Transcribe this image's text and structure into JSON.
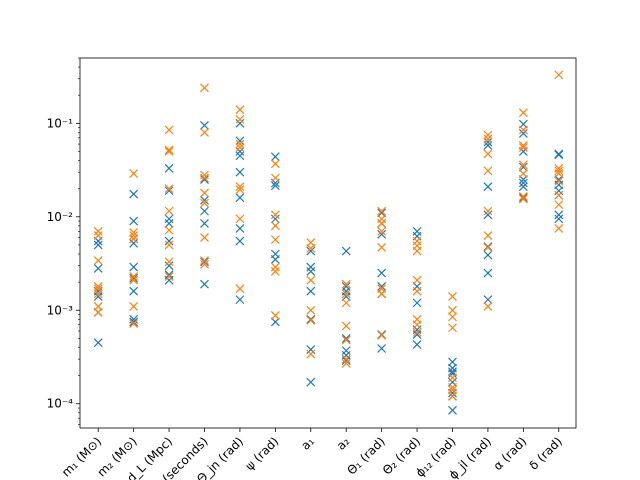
{
  "chart_data": {
    "type": "scatter",
    "title": "",
    "xlabel": "",
    "ylabel": "",
    "yscale": "log",
    "ylim": [
      5.5e-05,
      0.5
    ],
    "ytick_labels": [
      "10⁻⁴",
      "10⁻³",
      "10⁻²",
      "10⁻¹"
    ],
    "ytick_values": [
      0.0001,
      0.001,
      0.01,
      0.1
    ],
    "grid": false,
    "legend": "none",
    "categories": [
      "m₁ (M⊙)",
      "m₂ (M⊙)",
      "d_L (Mpc)",
      "t_c (seconds)",
      "Θ_jn (rad)",
      "ψ (rad)",
      "a₁",
      "a₂",
      "Θ₁ (rad)",
      "Θ₂ (rad)",
      "ϕ₁₂ (rad)",
      "ϕ_jl (rad)",
      "α (rad)",
      "δ (rad)"
    ],
    "marker": "x",
    "colors": [
      "#1f77b4",
      "#ff7f0e"
    ],
    "series": [
      {
        "color": "#1f77b4",
        "values": [
          [
            0.00045,
            0.00095,
            0.0014,
            0.0016,
            0.0028,
            0.005,
            0.0055
          ],
          [
            0.00075,
            0.0008,
            0.0016,
            0.0022,
            0.0029,
            0.0052,
            0.0058,
            0.009,
            0.0175
          ],
          [
            0.0021,
            0.0024,
            0.003,
            0.0055,
            0.0085,
            0.0095,
            0.019,
            0.033
          ],
          [
            0.0019,
            0.0033,
            0.0085,
            0.0115,
            0.015,
            0.025,
            0.095
          ],
          [
            0.0013,
            0.0055,
            0.0075,
            0.016,
            0.03,
            0.045,
            0.05,
            0.065,
            0.1
          ],
          [
            0.00075,
            0.0035,
            0.004,
            0.0095,
            0.0215,
            0.023,
            0.044
          ],
          [
            0.00017,
            0.00038,
            0.0008,
            0.0016,
            0.0026,
            0.0029,
            0.0043
          ],
          [
            0.00029,
            0.00033,
            0.00037,
            0.0005,
            0.0014,
            0.0016,
            0.0018,
            0.0043
          ],
          [
            0.00039,
            0.00055,
            0.0015,
            0.0018,
            0.0025,
            0.0065,
            0.0085,
            0.011
          ],
          [
            0.00043,
            0.00055,
            0.00062,
            0.0012,
            0.0018,
            0.0062,
            0.007
          ],
          [
            8.5e-05,
            0.00012,
            0.00013,
            0.00017,
            0.00021,
            0.00022,
            0.00024,
            0.00028
          ],
          [
            0.0013,
            0.0025,
            0.0039,
            0.0048,
            0.0105,
            0.021,
            0.058,
            0.063
          ],
          [
            0.016,
            0.021,
            0.023,
            0.025,
            0.034,
            0.05,
            0.078,
            0.098
          ],
          [
            0.0095,
            0.0105,
            0.017,
            0.019,
            0.022,
            0.025,
            0.046,
            0.047
          ]
        ]
      },
      {
        "color": "#ff7f0e",
        "values": [
          [
            0.00095,
            0.0011,
            0.0015,
            0.0017,
            0.0018,
            0.0034,
            0.0063,
            0.007
          ],
          [
            0.00072,
            0.0011,
            0.0021,
            0.0023,
            0.0058,
            0.0063,
            0.0068,
            0.029
          ],
          [
            0.0023,
            0.0033,
            0.005,
            0.0072,
            0.0115,
            0.02,
            0.05,
            0.052,
            0.085
          ],
          [
            0.0031,
            0.0034,
            0.006,
            0.014,
            0.018,
            0.026,
            0.028,
            0.08,
            0.24
          ],
          [
            0.0017,
            0.0095,
            0.0195,
            0.021,
            0.055,
            0.06,
            0.11,
            0.14
          ],
          [
            0.00088,
            0.0026,
            0.0029,
            0.0057,
            0.008,
            0.0105,
            0.026,
            0.037
          ],
          [
            0.00034,
            0.00078,
            0.001,
            0.0021,
            0.0046,
            0.0053
          ],
          [
            0.00027,
            0.0003,
            0.00048,
            0.00068,
            0.0012,
            0.0015,
            0.0019
          ],
          [
            0.00054,
            0.0015,
            0.0017,
            0.0047,
            0.007,
            0.0085,
            0.0095,
            0.0115
          ],
          [
            0.00058,
            0.0007,
            0.0008,
            0.0016,
            0.0021,
            0.0043,
            0.0049,
            0.0055
          ],
          [
            0.00012,
            0.00014,
            0.00015,
            0.00019,
            0.00065,
            0.00085,
            0.001,
            0.0014
          ],
          [
            0.0011,
            0.0047,
            0.0063,
            0.0115,
            0.031,
            0.047,
            0.068,
            0.075
          ],
          [
            0.0155,
            0.0165,
            0.029,
            0.036,
            0.055,
            0.058,
            0.085,
            0.13
          ],
          [
            0.0075,
            0.0135,
            0.017,
            0.024,
            0.029,
            0.031,
            0.033,
            0.33
          ]
        ]
      }
    ]
  }
}
